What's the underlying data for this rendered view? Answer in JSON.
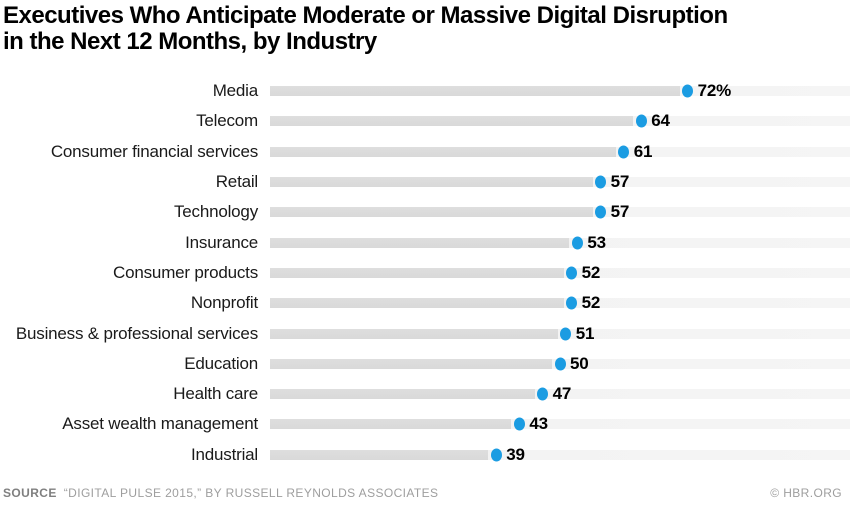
{
  "header": {
    "title": "Executives Who Anticipate Moderate or Massive Digital Disruption\nin the Next 12 Months, by Industry"
  },
  "chart_data": {
    "type": "bar",
    "orientation": "horizontal",
    "title": "Executives Who Anticipate Moderate or Massive Digital Disruption in the Next 12 Months, by Industry",
    "categories": [
      "Media",
      "Telecom",
      "Consumer financial services",
      "Retail",
      "Technology",
      "Insurance",
      "Consumer products",
      "Nonprofit",
      "Business & professional services",
      "Education",
      "Health care",
      "Asset wealth management",
      "Industrial"
    ],
    "values": [
      72,
      64,
      61,
      57,
      57,
      53,
      52,
      52,
      51,
      50,
      47,
      43,
      39
    ],
    "display_values": [
      "72%",
      "64",
      "61",
      "57",
      "57",
      "53",
      "52",
      "52",
      "51",
      "50",
      "47",
      "43",
      "39"
    ],
    "unit": "percent of executives",
    "xlim": [
      0,
      100
    ],
    "grid": "off",
    "legend": "none",
    "marker": "dot-at-bar-end"
  },
  "footer": {
    "source_label": "SOURCE",
    "source_text": "“DIGITAL PULSE 2015,” BY RUSSELL REYNOLDS ASSOCIATES",
    "credit": "© HBR.ORG"
  },
  "colors": {
    "title_text": "#000000",
    "label_text": "#1a1a1a",
    "bar_track": "#f1f1f1",
    "bar_fill": "#d9d9d9",
    "dot": "#1b9ce2",
    "value_text": "#000000",
    "footer_label": "#7f7f7f",
    "footer_text": "#9e9e9e"
  }
}
